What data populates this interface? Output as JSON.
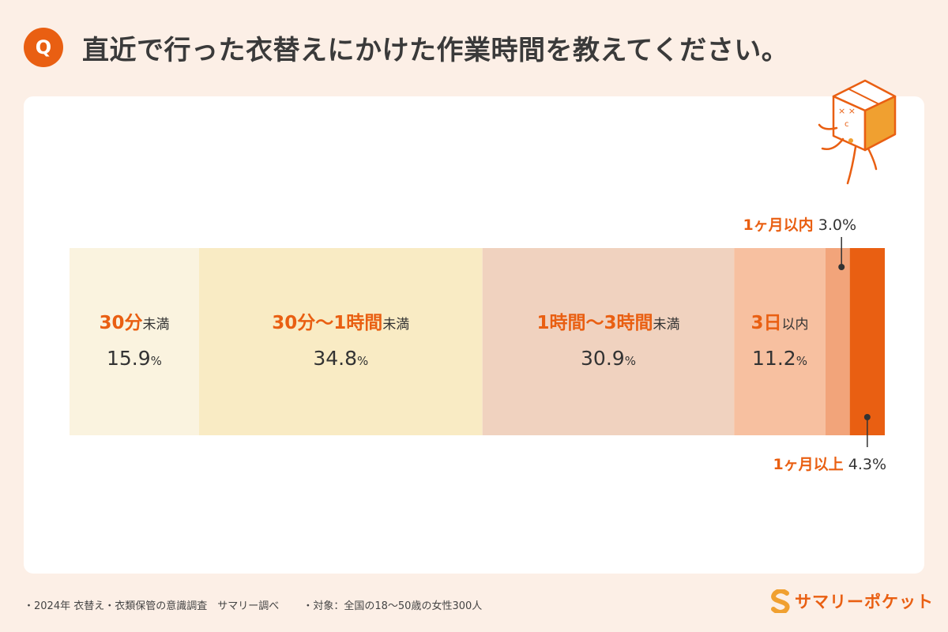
{
  "header": {
    "badge": "Q",
    "question": "直近で行った衣替えにかけた作業時間を教えてください。"
  },
  "footer": {
    "source": "・2024年 衣替え・衣類保管の意識調査　サマリー調べ",
    "target": "・対象：全国の18〜50歳の女性300人"
  },
  "logo": {
    "text": "サマリーポケット"
  },
  "colors": {
    "accent": "#e95f12",
    "text": "#333333",
    "background": "#fcefe6"
  },
  "chart_data": {
    "type": "bar",
    "orientation": "horizontal-stacked-100",
    "unit": "%",
    "segments": [
      {
        "label": "30分",
        "suffix": "未満",
        "value": 15.9,
        "color": "#faf3df"
      },
      {
        "label": "30分〜1時間",
        "suffix": "未満",
        "value": 34.8,
        "color": "#f9ebc4"
      },
      {
        "label": "1時間〜3時間",
        "suffix": "未満",
        "value": 30.9,
        "color": "#f0d2bf"
      },
      {
        "label": "3日",
        "suffix": "以内",
        "value": 11.2,
        "color": "#f7c0a0"
      },
      {
        "label": "1ヶ月",
        "suffix": "以内",
        "value": 3.0,
        "color": "#f2a47a"
      },
      {
        "label": "1ヶ月",
        "suffix": "以上",
        "value": 4.3,
        "color": "#e95f12"
      }
    ]
  }
}
